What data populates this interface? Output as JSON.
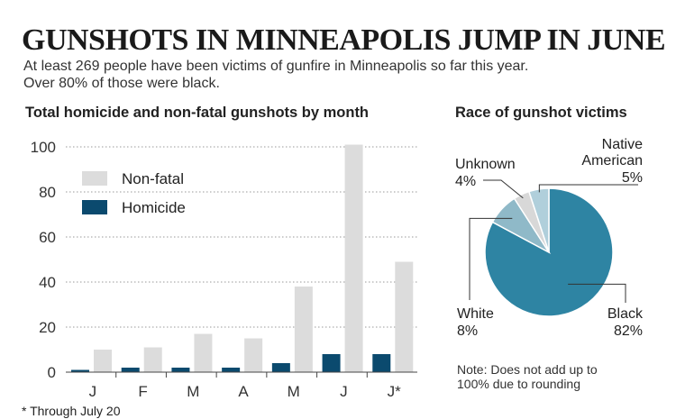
{
  "header": {
    "title": "GUNSHOTS IN MINNEAPOLIS JUMP IN JUNE",
    "subtitle_lines": [
      "At least 269 people have been victims of gunfire in Minneapolis so far this year.",
      "Over 80% of those were black."
    ]
  },
  "footnote": "* Through July 20",
  "note_lines": [
    "Note: Does not add up to",
    "100% due to rounding"
  ],
  "colors": {
    "nonfatal": "#dcdcdc",
    "homicide": "#0b4a6e",
    "black": "#2e84a3",
    "white": "#8fb9c8",
    "unknown": "#d8d8d8",
    "native_american": "#b0cfdb"
  },
  "chart_data": [
    {
      "type": "bar",
      "title": "Total homicide and non-fatal gunshots by month",
      "categories": [
        "J",
        "F",
        "M",
        "A",
        "M",
        "J",
        "J*"
      ],
      "series": [
        {
          "name": "Homicide",
          "values": [
            1,
            2,
            2,
            2,
            4,
            8,
            8
          ]
        },
        {
          "name": "Non-fatal",
          "values": [
            10,
            11,
            17,
            15,
            38,
            101,
            49
          ]
        }
      ],
      "yticks": [
        0,
        20,
        40,
        60,
        80,
        100
      ],
      "ylim": [
        0,
        100
      ],
      "grid": true,
      "legend_position": "top-left"
    },
    {
      "type": "pie",
      "title": "Race of gunshot victims",
      "slices": [
        {
          "label": "Black",
          "value": 82,
          "display": "82%"
        },
        {
          "label": "White",
          "value": 8,
          "display": "8%"
        },
        {
          "label": "Unknown",
          "value": 4,
          "display": "4%"
        },
        {
          "label": "Native American",
          "value": 5,
          "display": "5%"
        }
      ]
    }
  ]
}
